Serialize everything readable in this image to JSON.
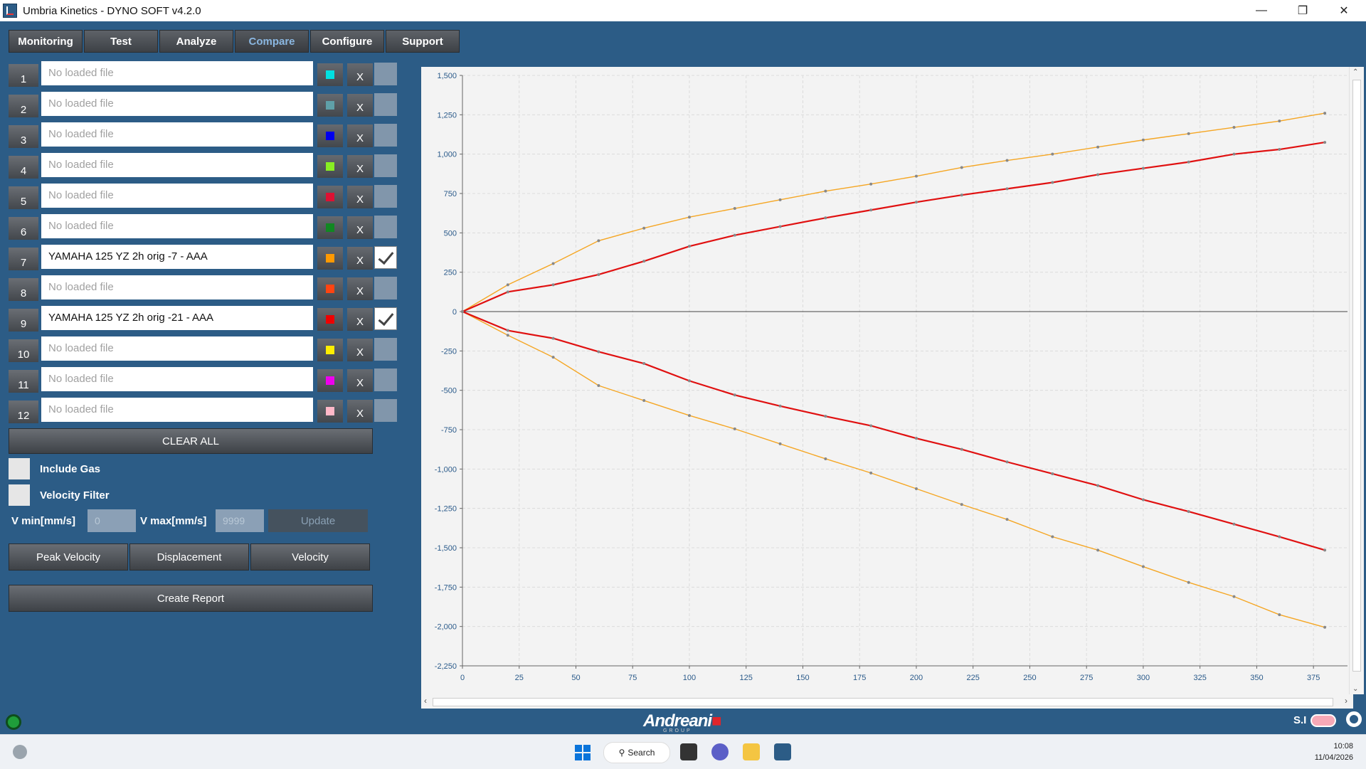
{
  "window": {
    "title": "Umbria Kinetics - DYNO SOFT v4.2.0"
  },
  "tabs": [
    {
      "label": "Monitoring",
      "active": false
    },
    {
      "label": "Test",
      "active": false
    },
    {
      "label": "Analyze",
      "active": false
    },
    {
      "label": "Compare",
      "active": true
    },
    {
      "label": "Configure",
      "active": false
    },
    {
      "label": "Support",
      "active": false
    }
  ],
  "files": [
    {
      "num": "1",
      "name": "No loaded file",
      "loaded": false,
      "color": "#00e0e0",
      "checked": false
    },
    {
      "num": "2",
      "name": "No loaded file",
      "loaded": false,
      "color": "#5fa0a8",
      "checked": false
    },
    {
      "num": "3",
      "name": "No loaded file",
      "loaded": false,
      "color": "#0000ee",
      "checked": false
    },
    {
      "num": "4",
      "name": "No loaded file",
      "loaded": false,
      "color": "#88ee22",
      "checked": false
    },
    {
      "num": "5",
      "name": "No loaded file",
      "loaded": false,
      "color": "#dd1133",
      "checked": false
    },
    {
      "num": "6",
      "name": "No loaded file",
      "loaded": false,
      "color": "#118822",
      "checked": false
    },
    {
      "num": "7",
      "name": "YAMAHA 125 YZ 2h orig -7 - AAA",
      "loaded": true,
      "color": "#ff9900",
      "checked": true
    },
    {
      "num": "8",
      "name": "No loaded file",
      "loaded": false,
      "color": "#ff4411",
      "checked": false
    },
    {
      "num": "9",
      "name": "YAMAHA 125 YZ 2h orig -21 - AAA",
      "loaded": true,
      "color": "#ee0000",
      "checked": true
    },
    {
      "num": "10",
      "name": "No loaded file",
      "loaded": false,
      "color": "#ffee00",
      "checked": false
    },
    {
      "num": "11",
      "name": "No loaded file",
      "loaded": false,
      "color": "#ee00ee",
      "checked": false
    },
    {
      "num": "12",
      "name": "No loaded file",
      "loaded": false,
      "color": "#ffb8c8",
      "checked": false
    }
  ],
  "row_delete_label": "X",
  "controls": {
    "clear_all": "CLEAR ALL",
    "include_gas": "Include Gas",
    "velocity_filter": "Velocity Filter",
    "vmin_label": "V min[mm/s]",
    "vmin_value": "0",
    "vmax_label": "V max[mm/s]",
    "vmax_value": "9999",
    "update": "Update",
    "peak_velocity": "Peak Velocity",
    "displacement": "Displacement",
    "velocity": "Velocity",
    "create_report": "Create Report"
  },
  "footer": {
    "logo_text": "Andreani",
    "logo_sub": "GROUP",
    "units": "S.I"
  },
  "taskbar": {
    "search": "Search",
    "time": "10:08",
    "date": "11/04/2026"
  },
  "chart_data": {
    "type": "line",
    "xlim": [
      0,
      390
    ],
    "ylim": [
      -2250,
      1500
    ],
    "xticks": [
      0,
      25,
      50,
      75,
      100,
      125,
      150,
      175,
      200,
      225,
      250,
      275,
      300,
      325,
      350,
      375
    ],
    "yticks": [
      1500,
      1250,
      1000,
      750,
      500,
      250,
      0,
      -250,
      -500,
      -750,
      -1000,
      -1250,
      -1500,
      -1750,
      -2000,
      -2250
    ],
    "ytick_labels": [
      "1,500",
      "1,250",
      "1,000",
      "750",
      "500",
      "250",
      "0",
      "-250",
      "-500",
      "-750",
      "-1,000",
      "-1,250",
      "-1,500",
      "-1,750",
      "-2,000",
      "-2,250"
    ],
    "grid": true,
    "series": [
      {
        "color": "#f5a623",
        "x": [
          0,
          20,
          40,
          60,
          80,
          100,
          120,
          140,
          160,
          180,
          200,
          220,
          240,
          260,
          280,
          300,
          320,
          340,
          360,
          380
        ],
        "upper": [
          0,
          170,
          305,
          450,
          530,
          600,
          655,
          710,
          765,
          810,
          860,
          915,
          960,
          1000,
          1045,
          1090,
          1130,
          1170,
          1210,
          1260
        ],
        "lower": [
          0,
          -150,
          -290,
          -470,
          -565,
          -660,
          -745,
          -840,
          -935,
          -1025,
          -1125,
          -1225,
          -1320,
          -1430,
          -1515,
          -1620,
          -1720,
          -1810,
          -1925,
          -2005
        ]
      },
      {
        "color": "#e01010",
        "x": [
          0,
          20,
          40,
          60,
          80,
          100,
          120,
          140,
          160,
          180,
          200,
          220,
          240,
          260,
          280,
          300,
          320,
          340,
          360,
          380
        ],
        "upper": [
          0,
          125,
          170,
          235,
          320,
          415,
          485,
          540,
          595,
          645,
          695,
          740,
          780,
          820,
          870,
          910,
          950,
          1000,
          1030,
          1075
        ],
        "lower": [
          0,
          -120,
          -170,
          -255,
          -330,
          -440,
          -530,
          -600,
          -665,
          -725,
          -805,
          -875,
          -955,
          -1030,
          -1105,
          -1195,
          -1270,
          -1350,
          -1430,
          -1515
        ]
      }
    ]
  }
}
